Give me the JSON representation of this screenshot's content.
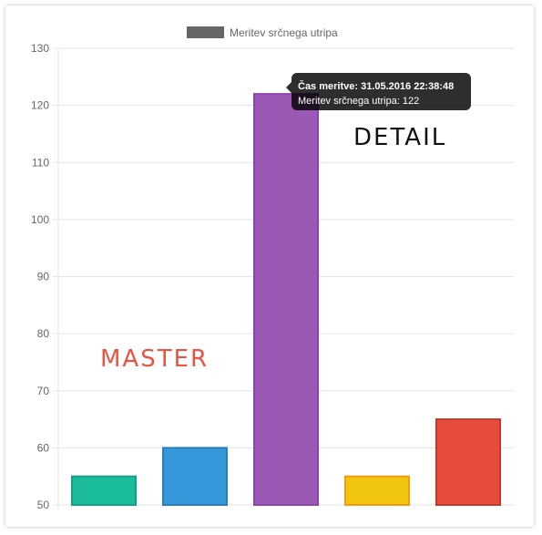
{
  "chart_data": {
    "type": "bar",
    "categories": [
      "",
      "",
      "",
      "",
      ""
    ],
    "series": [
      {
        "name": "Meritev srčnega utripa",
        "values": [
          55,
          60,
          122,
          55,
          65
        ]
      }
    ],
    "bar_colors": [
      "#1abc9c",
      "#3498db",
      "#9b59b6",
      "#f1c40f",
      "#e74c3c"
    ],
    "bar_border_colors": [
      "#16a085",
      "#2980b9",
      "#8e44ad",
      "#f39c12",
      "#c0392b"
    ],
    "ylim": [
      50,
      130
    ],
    "yticks": [
      50,
      60,
      70,
      80,
      90,
      100,
      110,
      120,
      130
    ],
    "grid": true,
    "legend": {
      "label": "Meritev srčnega utripa",
      "color": "#666666",
      "position": "top"
    },
    "tooltip": {
      "title": "Čas meritve: 31.05.2016 22:38:48",
      "body": "Meritev srčnega utripa: 122"
    },
    "annotations": [
      {
        "text": "MASTER",
        "color": "#e8543f"
      },
      {
        "text": "DETAIL",
        "color": "#111111"
      }
    ]
  }
}
